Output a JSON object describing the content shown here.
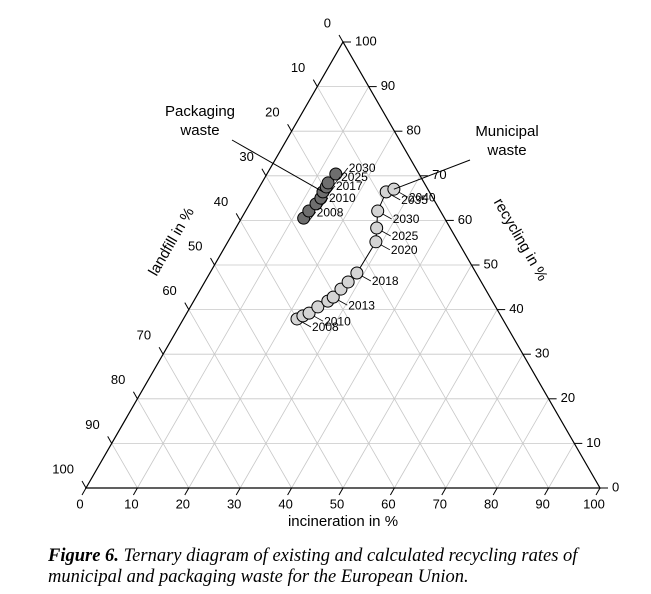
{
  "chart_data": {
    "type": "ternary",
    "axes": [
      {
        "name": "incineration",
        "label": "incineration in %",
        "lim": [
          0,
          100
        ],
        "ticks": [
          0,
          10,
          20,
          30,
          40,
          50,
          60,
          70,
          80,
          90,
          100
        ]
      },
      {
        "name": "recycling",
        "label": "recycling in %",
        "lim": [
          0,
          100
        ],
        "ticks": [
          0,
          10,
          20,
          30,
          40,
          50,
          60,
          70,
          80,
          90,
          100
        ]
      },
      {
        "name": "landfill",
        "label": "landfill in %",
        "lim": [
          0,
          100
        ],
        "ticks": [
          0,
          10,
          20,
          30,
          40,
          50,
          60,
          70,
          80,
          90,
          100
        ]
      }
    ],
    "grid": true,
    "series": [
      {
        "name": "Municipal waste",
        "color": "#d4d4d4",
        "line": true,
        "incineration": [
          22.1,
          22.9,
          23.8,
          24.8,
          26.1,
          26.7,
          27.3,
          27.9,
          28.6,
          28.8,
          27.4,
          25.7,
          25.2,
          26.4
        ],
        "recycling": [
          37.9,
          38.6,
          39.2,
          40.6,
          41.9,
          42.8,
          44.6,
          46.2,
          48.2,
          55.2,
          58.3,
          62.1,
          66.4,
          67.0
        ],
        "landfill": [
          40.0,
          38.5,
          37.0,
          34.6,
          32.0,
          30.5,
          28.1,
          25.9,
          23.2,
          16.0,
          14.3,
          12.2,
          8.4,
          6.6
        ],
        "labels": [
          "2008",
          null,
          "2010",
          null,
          null,
          "2013",
          null,
          null,
          "2018",
          "2020",
          "2025",
          "2030",
          "2035",
          "2040"
        ]
      },
      {
        "name": "Packaging waste",
        "color": "#6e6e6e",
        "line": false,
        "incineration": [
          12.1,
          12.3,
          12.9,
          13.2,
          12.9,
          13.0,
          12.9,
          13.4
        ],
        "recycling": [
          60.5,
          62.1,
          63.7,
          65.0,
          66.4,
          67.5,
          68.4,
          70.4
        ],
        "landfill": [
          27.4,
          25.6,
          23.4,
          21.8,
          20.7,
          19.5,
          18.7,
          16.2
        ],
        "labels": [
          "2008",
          null,
          "2010",
          null,
          "2017",
          null,
          "2025",
          "2030"
        ]
      }
    ],
    "annotations": [
      {
        "lines": [
          "Packaging",
          "waste"
        ],
        "series": 1
      },
      {
        "lines": [
          "Municipal",
          "waste"
        ],
        "series": 0
      }
    ],
    "caption": {
      "label": "Figure 6.",
      "text": "Ternary diagram of existing and calculated recycling rates of municipal and packaging waste for the European Union."
    }
  }
}
